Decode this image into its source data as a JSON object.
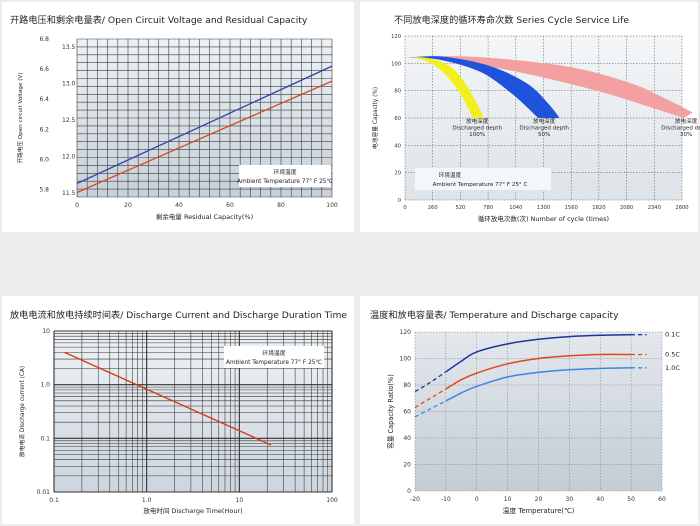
{
  "chart_data": [
    {
      "type": "line",
      "title": "开路电压和剩余电量表/ Open Circuit Voltage and Residual Capacity",
      "xlabel": "剩余电量 Residual Capacity(%)",
      "ylabel": "开路电压 Open circuit Voltage (V)",
      "xlim": [
        0,
        100
      ],
      "x_ticks": [
        "0",
        "20",
        "40",
        "60",
        "80",
        "100"
      ],
      "ylim_left": [
        5.75,
        6.8
      ],
      "y_ticks_left": [
        "6.8",
        "6.6",
        "6.4",
        "6.2",
        "6.0",
        "5.8"
      ],
      "y_ticks_right": [
        "13.5",
        "13.0",
        "12.5",
        "12.0",
        "11.5"
      ],
      "annotation": [
        "环境温度",
        "Ambient Temperature 77° F 25℃"
      ],
      "series": [
        {
          "color": "#3344aa",
          "x": [
            0,
            100
          ],
          "y": [
            5.84,
            6.62
          ]
        },
        {
          "color": "#d24a1c",
          "x": [
            0,
            100
          ],
          "y": [
            5.78,
            6.52
          ]
        }
      ]
    },
    {
      "type": "area",
      "title": "不同放电深度的循环寿命次数 Series Cycle Service Life",
      "xlabel": "循环放电次数(次) Number of cycle (times)",
      "ylabel": "电池容量 Capacity (%)",
      "x_ticks": [
        "0",
        "260",
        "520",
        "780",
        "1040",
        "1300",
        "1560",
        "1820",
        "2080",
        "2340",
        "2600"
      ],
      "xlim": [
        0,
        2600
      ],
      "y_ticks": [
        "0",
        "20",
        "40",
        "60",
        "80",
        "100",
        "120"
      ],
      "ylim": [
        0,
        120
      ],
      "annotation": [
        "环境温度",
        "Ambient Temperature 77° F 25° C"
      ],
      "series": [
        {
          "color": "#f3ef1c",
          "labels": [
            "放电深度",
            "Discharged depth",
            "100%"
          ],
          "upper_x": [
            0,
            200,
            420,
            560,
            680,
            740
          ],
          "upper_y": [
            104,
            104,
            98,
            86,
            70,
            60
          ],
          "lower_x": [
            0,
            150,
            320,
            500,
            640
          ],
          "lower_y": [
            104,
            103,
            96,
            80,
            60
          ]
        },
        {
          "color": "#1f53dc",
          "labels": [
            "放电深度",
            "Discharged depth",
            "50%"
          ],
          "upper_x": [
            0,
            350,
            800,
            1150,
            1350,
            1450
          ],
          "upper_y": [
            104,
            105,
            98,
            85,
            70,
            60
          ],
          "lower_x": [
            0,
            300,
            700,
            1000,
            1250
          ],
          "lower_y": [
            104,
            103,
            94,
            78,
            60
          ]
        },
        {
          "color": "#f4a0a0",
          "labels": [
            "放电深度",
            "Discharged depth",
            "30%"
          ],
          "upper_x": [
            0,
            600,
            1500,
            2100,
            2450,
            2700
          ],
          "upper_y": [
            104,
            105,
            98,
            86,
            74,
            64
          ],
          "lower_x": [
            0,
            450,
            1100,
            1800,
            2300,
            2620
          ],
          "lower_y": [
            104,
            102,
            93,
            80,
            68,
            60
          ]
        }
      ]
    },
    {
      "type": "line",
      "title": "放电电流和放电持续时间表/ Discharge Current and Discharge Duration Time",
      "xlabel": "放电时间 Discharge Time(Hour)",
      "ylabel": "放电电流 Discharge current (CA)",
      "xscale": "log",
      "yscale": "log",
      "xlim": [
        0.1,
        100
      ],
      "ylim": [
        0.01,
        10
      ],
      "x_ticks": [
        "0.1",
        "1.0",
        "10",
        "100"
      ],
      "y_ticks": [
        "10",
        "1.0",
        "0.1",
        "0.01"
      ],
      "annotation": [
        "环境温度",
        "Ambient Temperature 77° F 25℃"
      ],
      "series": [
        {
          "color": "#d83a18",
          "x": [
            0.13,
            22
          ],
          "y": [
            4.0,
            0.075
          ]
        }
      ]
    },
    {
      "type": "line",
      "title": "温度和放电容量表/ Temperature and Discharge capacity",
      "xlabel": "温度 Temperature(℃)",
      "ylabel": "容量 Capacity Ratio(%)",
      "xlim": [
        -20,
        60
      ],
      "ylim": [
        0,
        120
      ],
      "x_ticks": [
        "-20",
        "-10",
        "0",
        "10",
        "20",
        "30",
        "40",
        "50",
        "60"
      ],
      "y_ticks": [
        "0",
        "20",
        "40",
        "60",
        "80",
        "100",
        "120"
      ],
      "series": [
        {
          "name": "0.1C",
          "color": "#2233a0",
          "x": [
            -20,
            -15,
            -10,
            -5,
            0,
            10,
            20,
            30,
            40,
            50,
            55
          ],
          "y": [
            75,
            82,
            90,
            98,
            105,
            111,
            114.5,
            116.5,
            117.5,
            118,
            118
          ]
        },
        {
          "name": "0.5C",
          "color": "#e04818",
          "x": [
            -20,
            -15,
            -10,
            -5,
            0,
            10,
            20,
            30,
            40,
            50,
            55
          ],
          "y": [
            63,
            70,
            77,
            84,
            89,
            96,
            100,
            102,
            103,
            103,
            103
          ]
        },
        {
          "name": "1.0C",
          "color": "#3a88e0",
          "x": [
            -20,
            -15,
            -10,
            -5,
            0,
            10,
            20,
            30,
            40,
            50,
            55
          ],
          "y": [
            56,
            62,
            68,
            74,
            79,
            86,
            89.5,
            91.5,
            92.5,
            93,
            93
          ]
        }
      ]
    }
  ]
}
